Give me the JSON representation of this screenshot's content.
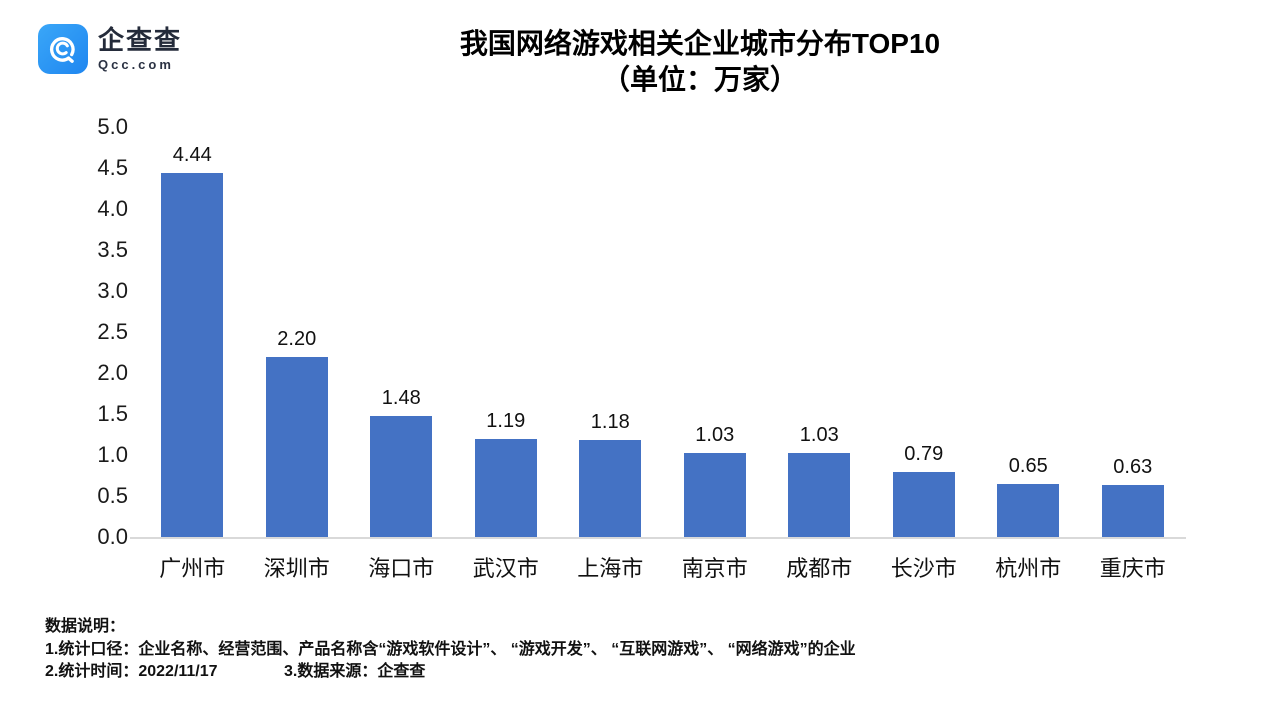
{
  "brand": {
    "name": "企查查",
    "domain": "Qcc.com"
  },
  "title": {
    "line1": "我国网络游戏相关企业城市分布TOP10",
    "line2": "（单位：万家）"
  },
  "chart_data": {
    "type": "bar",
    "title": "我国网络游戏相关企业城市分布TOP10（单位：万家）",
    "categories": [
      "广州市",
      "深圳市",
      "海口市",
      "武汉市",
      "上海市",
      "南京市",
      "成都市",
      "长沙市",
      "杭州市",
      "重庆市"
    ],
    "values": [
      4.44,
      2.2,
      1.48,
      1.19,
      1.18,
      1.03,
      1.03,
      0.79,
      0.65,
      0.63
    ],
    "value_labels": [
      "4.44",
      "2.20",
      "1.48",
      "1.19",
      "1.18",
      "1.03",
      "1.03",
      "0.79",
      "0.65",
      "0.63"
    ],
    "xlabel": "",
    "ylabel": "",
    "ylim": [
      0,
      5
    ],
    "ytick_step": 0.5,
    "yticks": [
      "5.0",
      "4.5",
      "4.0",
      "3.5",
      "3.0",
      "2.5",
      "2.0",
      "1.5",
      "1.0",
      "0.5",
      "0.0"
    ],
    "grid": false,
    "legend": false,
    "bar_color": "#4472C4"
  },
  "footer": {
    "heading": "数据说明：",
    "line1": "1.统计口径：企业名称、经营范围、产品名称含“游戏软件设计”、 “游戏开发”、 “互联网游戏”、 “网络游戏”的企业",
    "stat_time": "2.统计时间：2022/11/17",
    "source": "3.数据来源：企查查"
  },
  "colors": {
    "bar": "#4472C4",
    "logo_blue": "#2D8CF0",
    "axis_line": "#D9D9D9",
    "text": "#1A1A1A"
  }
}
